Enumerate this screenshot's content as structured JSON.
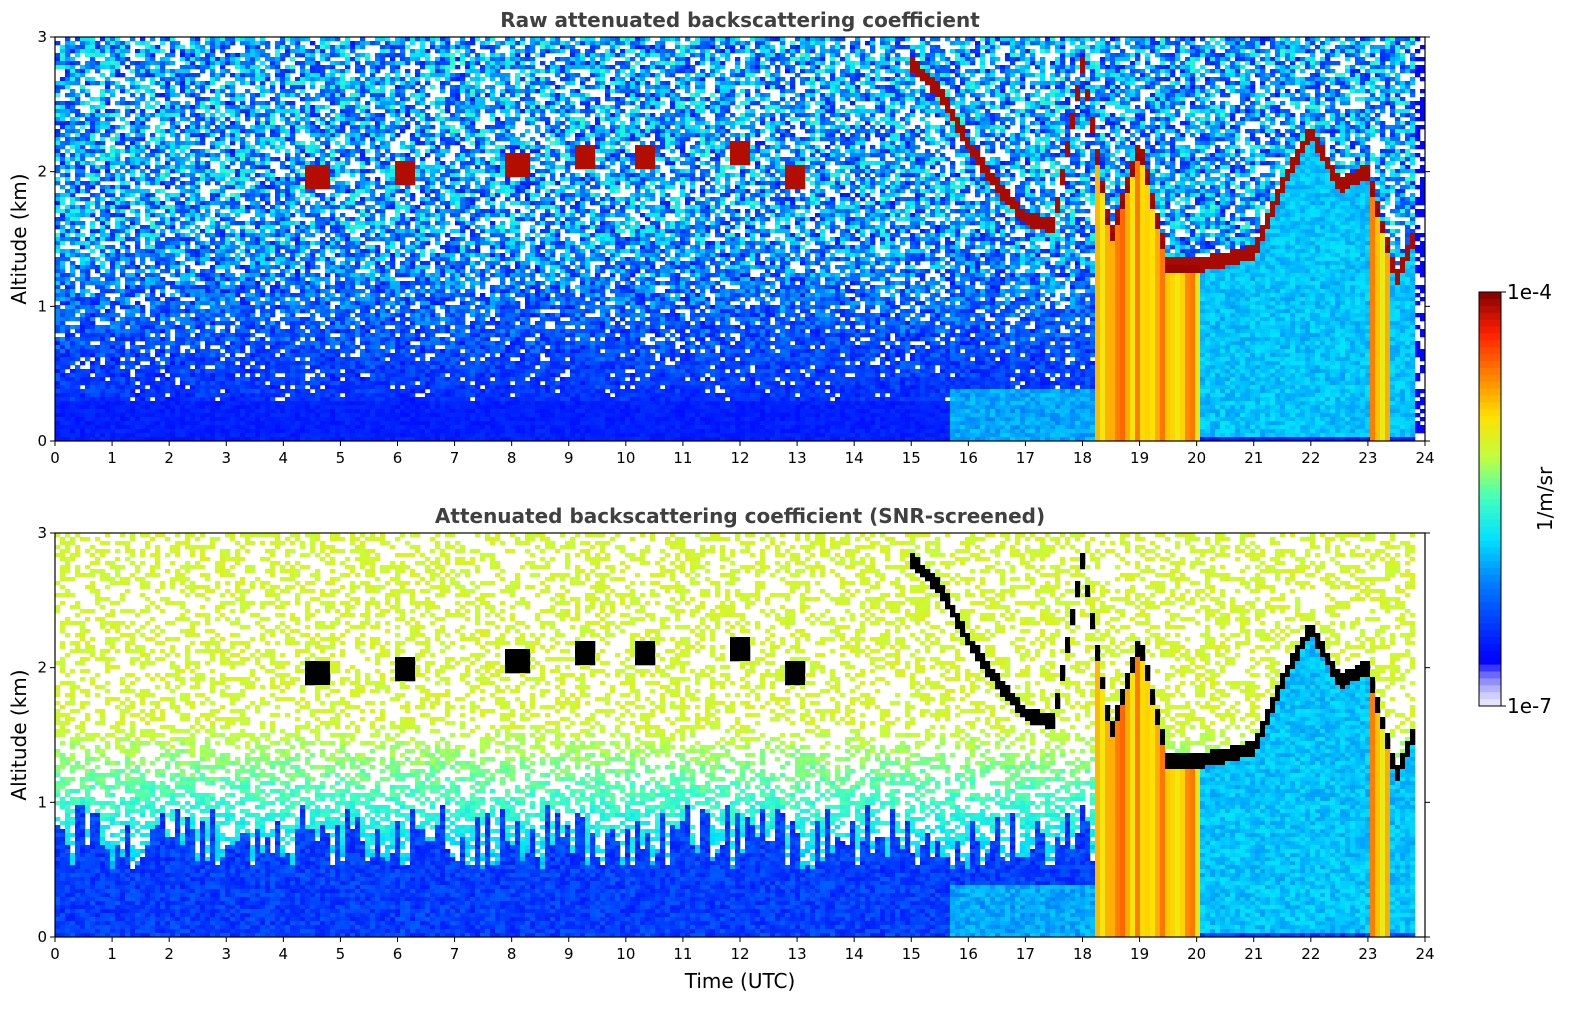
{
  "chart_data": [
    {
      "type": "heatmap",
      "title": "Raw attenuated backscattering coefficient",
      "xlabel": "",
      "ylabel": "Altitude (km)",
      "xlim": [
        0,
        24
      ],
      "ylim": [
        0,
        3
      ],
      "xticks": [
        "0",
        "1",
        "2",
        "3",
        "4",
        "5",
        "6",
        "7",
        "8",
        "9",
        "10",
        "11",
        "12",
        "13",
        "14",
        "15",
        "16",
        "17",
        "18",
        "19",
        "20",
        "21",
        "22",
        "23",
        "24"
      ],
      "yticks": [
        "0",
        "1",
        "2",
        "3"
      ],
      "screened": false,
      "cloud_layers": {
        "time_utc": [
          15.0,
          15.5,
          16.0,
          16.5,
          17.0,
          17.5,
          18.0,
          18.5,
          19.0,
          19.5,
          20.0,
          20.5,
          21.0,
          21.5,
          22.0,
          22.5,
          23.0,
          23.5,
          23.8
        ],
        "base_altitude_km": [
          2.8,
          2.6,
          2.2,
          1.9,
          1.65,
          1.6,
          2.8,
          1.5,
          2.2,
          1.3,
          1.3,
          1.35,
          1.4,
          1.9,
          2.3,
          1.9,
          2.0,
          1.2,
          1.5
        ]
      },
      "aerosol_patches": {
        "time_utc": [
          4.6,
          6.1,
          8.1,
          9.3,
          10.3,
          12.0,
          13.0
        ],
        "altitude_km": [
          1.95,
          2.0,
          2.05,
          2.1,
          2.1,
          2.15,
          1.95
        ]
      },
      "precipitation_bands_utc": [
        [
          18.2,
          20.1
        ],
        [
          23.0,
          23.4
        ]
      ]
    },
    {
      "type": "heatmap",
      "title": "Attenuated backscattering coefficient (SNR-screened)",
      "xlabel": "Time (UTC)",
      "ylabel": "Altitude (km)",
      "xlim": [
        0,
        24
      ],
      "ylim": [
        0,
        3
      ],
      "xticks": [
        "0",
        "1",
        "2",
        "3",
        "4",
        "5",
        "6",
        "7",
        "8",
        "9",
        "10",
        "11",
        "12",
        "13",
        "14",
        "15",
        "16",
        "17",
        "18",
        "19",
        "20",
        "21",
        "22",
        "23",
        "24"
      ],
      "yticks": [
        "0",
        "1",
        "2",
        "3"
      ],
      "screened": true
    }
  ],
  "colorbar": {
    "label": "1/m/sr",
    "max_label": "1e-4",
    "min_label": "1e-7",
    "scale": "log",
    "range": [
      1e-07,
      0.0001
    ],
    "colormap": "jet"
  }
}
